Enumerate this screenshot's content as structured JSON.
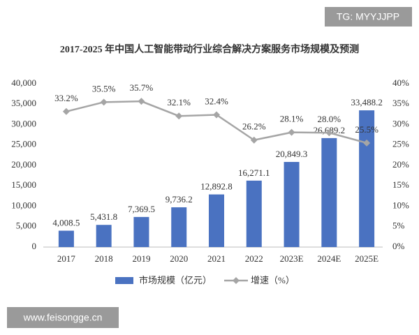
{
  "chart_data": {
    "type": "bar-line",
    "title": "2017-2025 年中国人工智能带动行业综合解决方案服务市场规模及预测",
    "categories": [
      "2017",
      "2018",
      "2019",
      "2020",
      "2021",
      "2022",
      "2023E",
      "2024E",
      "2025E"
    ],
    "series": [
      {
        "name": "市场规模（亿元）",
        "type": "bar",
        "color": "#4a72c1",
        "values": [
          4008.5,
          5431.8,
          7369.5,
          9736.2,
          12892.8,
          16271.1,
          20849.3,
          26689.2,
          33488.2
        ],
        "value_labels": [
          "4,008.5",
          "5,431.8",
          "7,369.5",
          "9,736.2",
          "12,892.8",
          "16,271.1",
          "20,849.3",
          "26,689.2",
          "33,488.2"
        ]
      },
      {
        "name": "增速（%）",
        "type": "line",
        "axis": "y2",
        "color": "#a5a5a5",
        "values": [
          33.2,
          35.5,
          35.7,
          32.1,
          32.4,
          26.2,
          28.1,
          28.0,
          25.5
        ],
        "value_labels": [
          "33.2%",
          "35.5%",
          "35.7%",
          "32.1%",
          "32.4%",
          "26.2%",
          "28.1%",
          "28.0%",
          "25.5%"
        ]
      }
    ],
    "ylim": [
      0,
      40000
    ],
    "yticks": [
      0,
      {
        "value": 5000,
        "label": "5,000"
      },
      {
        "value": 10000,
        "label": "10,000"
      },
      {
        "value": 15000,
        "label": "15,000"
      },
      {
        "value": 20000,
        "label": "20,000"
      },
      {
        "value": 25000,
        "label": "25,000"
      },
      {
        "value": 30000,
        "label": "30,000"
      },
      {
        "value": 35000,
        "label": "35,000"
      },
      {
        "value": 40000,
        "label": "40,000"
      }
    ],
    "y2lim": [
      0,
      40
    ],
    "y2ticks": [
      {
        "value": 0,
        "label": "0%"
      },
      {
        "value": 5,
        "label": "5%"
      },
      {
        "value": 10,
        "label": "10%"
      },
      {
        "value": 15,
        "label": "15%"
      },
      {
        "value": 20,
        "label": "20%"
      },
      {
        "value": 25,
        "label": "25%"
      },
      {
        "value": 30,
        "label": "30%"
      },
      {
        "value": 35,
        "label": "35%"
      },
      {
        "value": 40,
        "label": "40%"
      }
    ],
    "grid": false,
    "legend": "bottom"
  },
  "watermarks": [
    "TG: MYYJJPP",
    "www.feisongge.cn"
  ]
}
